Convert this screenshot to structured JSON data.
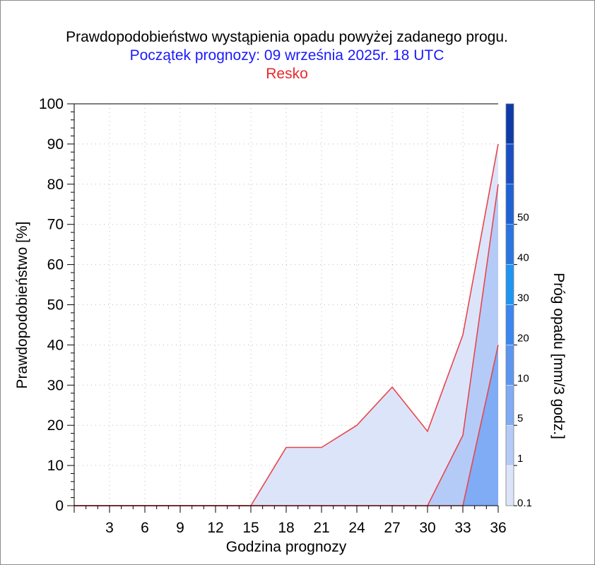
{
  "title": "Prawdopodobieństwo wystąpienia opadu powyżej zadanego progu.",
  "subtitle": "Początek prognozy: 09 września 2025r. 18 UTC",
  "location": "Resko",
  "colors": {
    "title": "#000000",
    "subtitle": "#1a1aff",
    "location": "#e8282f",
    "line": "#e8454b"
  },
  "chart_data": {
    "type": "area",
    "xlabel": "Godzina prognozy",
    "ylabel": "Prawdopodobieństwo [%]",
    "x_ticks": [
      "3",
      "6",
      "9",
      "12",
      "15",
      "18",
      "21",
      "24",
      "27",
      "30",
      "33",
      "36"
    ],
    "y_ticks": [
      "0",
      "10",
      "20",
      "30",
      "40",
      "50",
      "60",
      "70",
      "80",
      "90",
      "100"
    ],
    "xlim": [
      0,
      36
    ],
    "ylim": [
      0,
      100
    ],
    "grid": true,
    "x": [
      0,
      3,
      6,
      9,
      12,
      15,
      18,
      21,
      24,
      27,
      30,
      33,
      36
    ],
    "series": [
      {
        "name": "0.1",
        "color": "#dce4fa",
        "values": [
          0,
          0,
          0,
          0,
          0,
          0,
          14.5,
          14.5,
          20,
          29.5,
          18.5,
          42.5,
          90
        ]
      },
      {
        "name": "1",
        "color": "#b5cbf7",
        "values": [
          0,
          0,
          0,
          0,
          0,
          0,
          0,
          0,
          0,
          0,
          0,
          17.5,
          80
        ]
      },
      {
        "name": "5",
        "color": "#80abf5",
        "values": [
          0,
          0,
          0,
          0,
          0,
          0,
          0,
          0,
          0,
          0,
          0,
          0,
          40
        ]
      }
    ],
    "colorbar": {
      "label": "Próg opadu [mm/3 godz.]",
      "levels": [
        "0.1",
        "1",
        "5",
        "10",
        "20",
        "30",
        "40",
        "50"
      ],
      "colors": [
        "#dce4fa",
        "#b5cbf7",
        "#80abf5",
        "#5c96f0",
        "#3b86f0",
        "#1f95f2",
        "#2a75e0",
        "#1f62d4",
        "#1a4fc4",
        "#0e3aa8"
      ]
    }
  }
}
